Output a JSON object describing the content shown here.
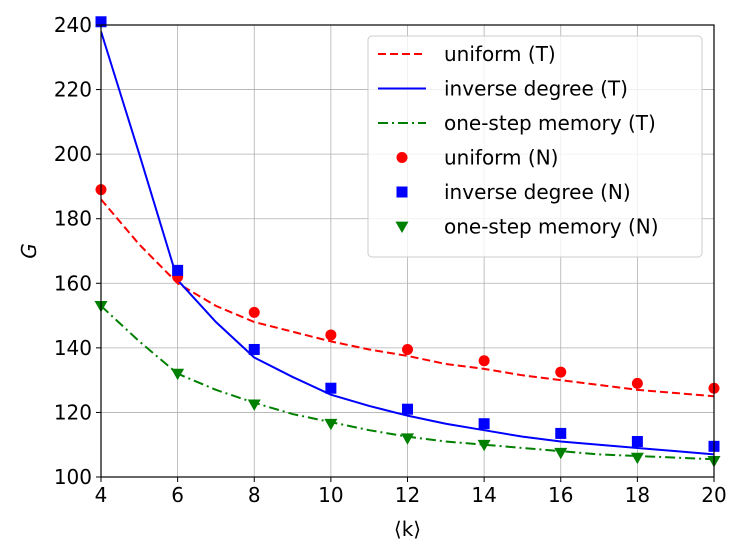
{
  "chart_data": {
    "type": "line",
    "xlabel": "⟨k⟩",
    "ylabel": "G",
    "xlim": [
      4,
      20
    ],
    "ylim": [
      100,
      240
    ],
    "xticks": [
      4,
      6,
      8,
      10,
      12,
      14,
      16,
      18,
      20
    ],
    "yticks": [
      100,
      120,
      140,
      160,
      180,
      200,
      220,
      240
    ],
    "grid": true,
    "legend_position": "top-right",
    "series": [
      {
        "name": "uniform (T)",
        "style": "line",
        "dash": "dashed",
        "color": "#ff0000",
        "x": [
          4,
          5,
          6,
          7,
          8,
          9,
          10,
          11,
          12,
          13,
          14,
          15,
          16,
          17,
          18,
          19,
          20
        ],
        "y": [
          186,
          172,
          160,
          153,
          148,
          145,
          142,
          139.5,
          137.5,
          135,
          133.5,
          131.5,
          130,
          128.5,
          127,
          126,
          125
        ]
      },
      {
        "name": "inverse degree (T)",
        "style": "line",
        "dash": "solid",
        "color": "#0000ff",
        "x": [
          4,
          5,
          6,
          7,
          8,
          9,
          10,
          11,
          12,
          13,
          14,
          15,
          16,
          17,
          18,
          19,
          20
        ],
        "y": [
          238,
          200,
          161,
          148,
          137,
          131,
          125.5,
          122,
          119,
          116.5,
          114.5,
          112.5,
          111,
          110,
          109,
          108,
          107
        ]
      },
      {
        "name": "one-step memory (T)",
        "style": "line",
        "dash": "dashdot",
        "color": "#008000",
        "x": [
          4,
          5,
          6,
          7,
          8,
          9,
          10,
          11,
          12,
          13,
          14,
          15,
          16,
          17,
          18,
          19,
          20
        ],
        "y": [
          153,
          142,
          132,
          127,
          123,
          119.5,
          117,
          114.5,
          112.5,
          111,
          110,
          109,
          108,
          107,
          106.5,
          106,
          105.5
        ]
      },
      {
        "name": "uniform (N)",
        "style": "marker",
        "marker": "circle",
        "color": "#ff0000",
        "x": [
          4,
          6,
          8,
          10,
          12,
          14,
          16,
          18,
          20
        ],
        "y": [
          189,
          162,
          151,
          144,
          139.5,
          136,
          132.5,
          129,
          127.5
        ]
      },
      {
        "name": "inverse degree (N)",
        "style": "marker",
        "marker": "square",
        "color": "#0000ff",
        "x": [
          4,
          6,
          8,
          10,
          12,
          14,
          16,
          18,
          20
        ],
        "y": [
          241,
          164,
          139.5,
          127.5,
          121,
          116.5,
          113.5,
          111,
          109.5
        ]
      },
      {
        "name": "one-step memory (N)",
        "style": "marker",
        "marker": "triangle-down",
        "color": "#008000",
        "x": [
          4,
          6,
          8,
          10,
          12,
          14,
          16,
          18,
          20
        ],
        "y": [
          153,
          132,
          122.5,
          116.5,
          112,
          110,
          107.5,
          106,
          105
        ]
      }
    ]
  }
}
